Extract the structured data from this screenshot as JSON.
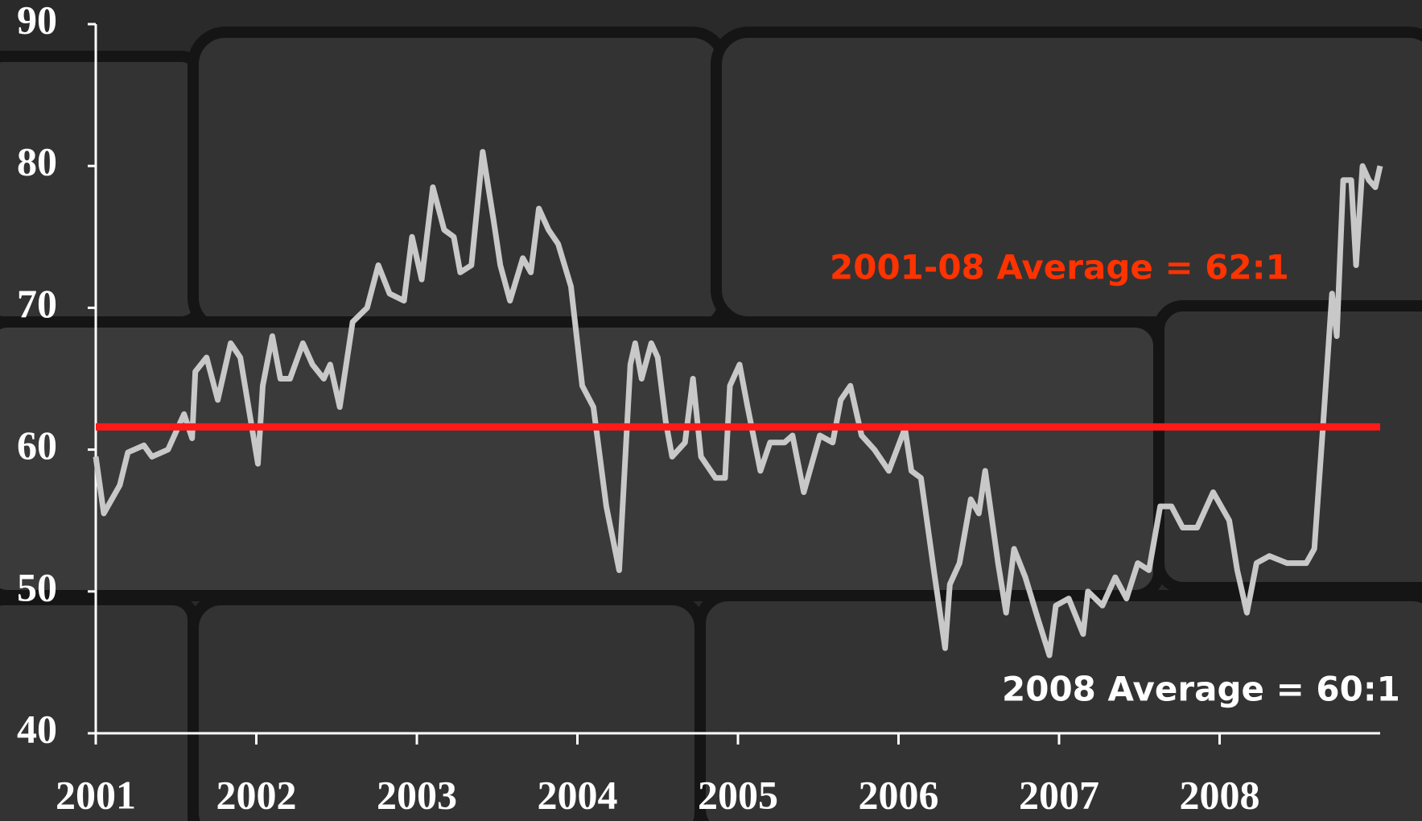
{
  "chart_data": {
    "type": "line",
    "x": [
      2001.0,
      2001.05,
      2001.15,
      2001.2,
      2001.3,
      2001.35,
      2001.45,
      2001.55,
      2001.6,
      2001.62,
      2001.69,
      2001.76,
      2001.84,
      2001.9,
      2002.01,
      2002.04,
      2002.1,
      2002.15,
      2002.21,
      2002.29,
      2002.35,
      2002.42,
      2002.46,
      2002.52,
      2002.6,
      2002.69,
      2002.76,
      2002.83,
      2002.92,
      2002.97,
      2003.03,
      2003.1,
      2003.17,
      2003.23,
      2003.27,
      2003.34,
      2003.41,
      2003.48,
      2003.52,
      2003.58,
      2003.66,
      2003.71,
      2003.76,
      2003.82,
      2003.88,
      2003.96,
      2004.03,
      2004.1,
      2004.18,
      2004.26,
      2004.33,
      2004.36,
      2004.4,
      2004.46,
      2004.5,
      2004.55,
      2004.59,
      2004.67,
      2004.72,
      2004.77,
      2004.86,
      2004.92,
      2004.95,
      2005.01,
      2005.06,
      2005.14,
      2005.2,
      2005.29,
      2005.34,
      2005.41,
      2005.51,
      2005.59,
      2005.64,
      2005.7,
      2005.77,
      2005.85,
      2005.94,
      2006.04,
      2006.08,
      2006.14,
      2006.22,
      2006.29,
      2006.32,
      2006.38,
      2006.45,
      2006.5,
      2006.54,
      2006.62,
      2006.67,
      2006.72,
      2006.79,
      2006.87,
      2006.94,
      2006.98,
      2007.06,
      2007.15,
      2007.18,
      2007.27,
      2007.35,
      2007.42,
      2007.49,
      2007.56,
      2007.63,
      2007.7,
      2007.77,
      2007.86,
      2007.96,
      2008.06,
      2008.11,
      2008.17,
      2008.23,
      2008.31,
      2008.42,
      2008.54,
      2008.59,
      2008.64,
      2008.7,
      2008.73,
      2008.77,
      2008.82,
      2008.85,
      2008.89,
      2008.93,
      2008.97,
      2009.0
    ],
    "series": [
      {
        "color": "#c8c8c8",
        "values": [
          59.5,
          55.5,
          57.5,
          59.8,
          60.3,
          59.5,
          60,
          62.5,
          60.8,
          65.5,
          66.5,
          63.5,
          67.5,
          66.5,
          59,
          64.5,
          68,
          65,
          65,
          67.5,
          66,
          65,
          66,
          63,
          69,
          70,
          73,
          71,
          70.5,
          75,
          72,
          78.5,
          75.5,
          75,
          72.5,
          73,
          81,
          76,
          73,
          70.5,
          73.5,
          72.5,
          77,
          75.5,
          74.5,
          71.5,
          64.5,
          63,
          56,
          51.5,
          66,
          67.5,
          65,
          67.5,
          66.5,
          62,
          59.5,
          60.5,
          65,
          59.5,
          58,
          58,
          64.5,
          66,
          63,
          58.5,
          60.5,
          60.5,
          61,
          57,
          61,
          60.5,
          63.5,
          64.5,
          61,
          60,
          58.5,
          61.5,
          58.5,
          58,
          51.5,
          46,
          50.5,
          52,
          56.5,
          55.5,
          58.5,
          52,
          48.5,
          53,
          51,
          48,
          45.5,
          49,
          49.5,
          47,
          50,
          49,
          51,
          49.5,
          52,
          51.5,
          56,
          56,
          54.5,
          54.5,
          57,
          55,
          51.5,
          48.5,
          52,
          52.5,
          52,
          52,
          53,
          61,
          71,
          68,
          79,
          79,
          73,
          80,
          79,
          78.5,
          80
        ]
      }
    ],
    "xlim": [
      2001,
      2009
    ],
    "xticks": [
      2001,
      2002,
      2003,
      2004,
      2005,
      2006,
      2007,
      2008
    ],
    "ylim": [
      40,
      90
    ],
    "yticks": [
      40,
      50,
      60,
      70,
      80,
      90
    ],
    "average_line": {
      "value": 61.6,
      "color": "#ff1a1a",
      "label": "2001-08 Average = 62:1",
      "label_color": "#ff3300"
    },
    "annotation": "2008 Average = 60:1"
  }
}
